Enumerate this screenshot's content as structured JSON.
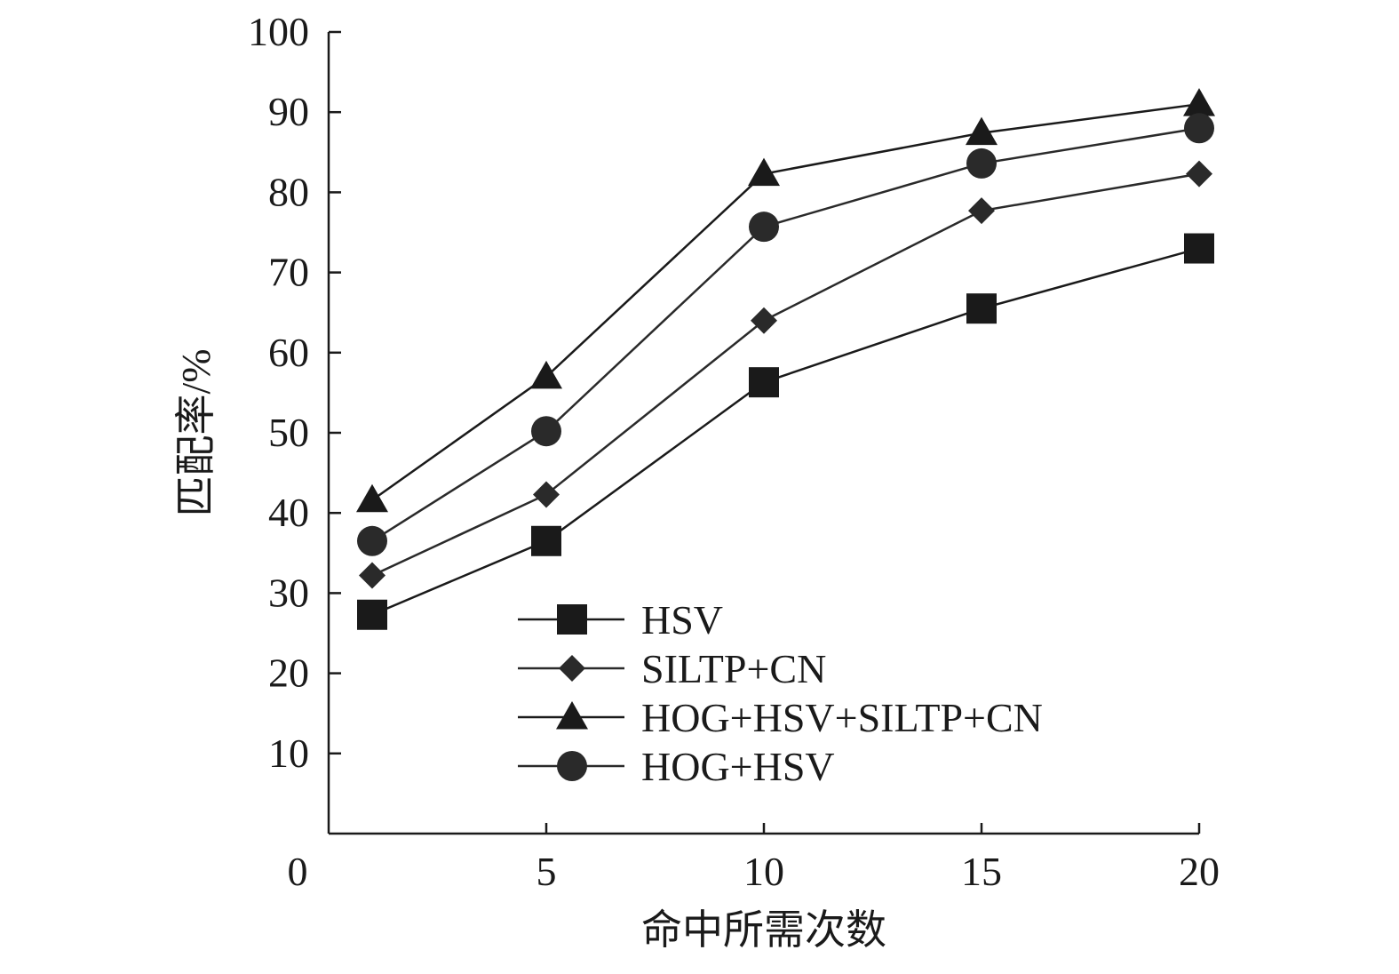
{
  "chart_data": {
    "type": "line",
    "xlabel": "命中所需次数",
    "ylabel": "匹配率/%",
    "xlim": [
      0,
      20
    ],
    "ylim": [
      0,
      100
    ],
    "x_ticks": [
      "0",
      "5",
      "10",
      "15",
      "20"
    ],
    "y_ticks": [
      "10",
      "20",
      "30",
      "40",
      "50",
      "60",
      "70",
      "80",
      "90",
      "100"
    ],
    "x": [
      1,
      5,
      10,
      15,
      20
    ],
    "grid": false,
    "legend_position": "bottom-center",
    "series": [
      {
        "name": "HSV",
        "marker": "square",
        "color": "#1a1a1a",
        "values": [
          27.3,
          36.5,
          56.3,
          65.5,
          73.0
        ]
      },
      {
        "name": "SILTP+CN",
        "marker": "diamond",
        "color": "#2a2a2a",
        "values": [
          32.2,
          42.3,
          64.0,
          77.7,
          82.3
        ]
      },
      {
        "name": "HOG+HSV+SILTP+CN",
        "marker": "triangle",
        "color": "#1a1a1a",
        "values": [
          41.6,
          57.0,
          82.3,
          87.4,
          91.0
        ]
      },
      {
        "name": "HOG+HSV",
        "marker": "circle",
        "color": "#2a2a2a",
        "values": [
          36.5,
          50.2,
          75.7,
          83.6,
          88.0
        ]
      }
    ]
  }
}
